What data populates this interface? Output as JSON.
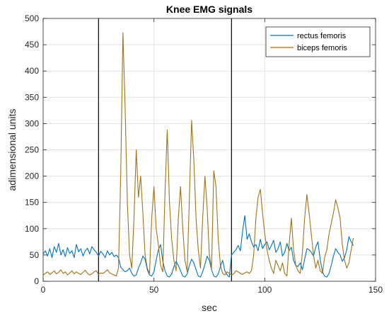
{
  "chart_data": {
    "type": "line",
    "title": "Knee EMG signals",
    "xlabel": "sec",
    "ylabel": "adimensional units",
    "xlim": [
      0,
      150
    ],
    "ylim": [
      0,
      500
    ],
    "xticks": [
      0,
      50,
      100,
      150
    ],
    "yticks": [
      0,
      50,
      100,
      150,
      200,
      250,
      300,
      350,
      400,
      450,
      500
    ],
    "grid": true,
    "legend_position": "top-right",
    "vertical_markers": [
      25,
      85
    ],
    "series": [
      {
        "name": "rectus femoris",
        "color": "#0072BD",
        "x": [
          0,
          1,
          2,
          3,
          4,
          5,
          6,
          7,
          8,
          9,
          10,
          11,
          12,
          13,
          14,
          15,
          16,
          17,
          18,
          19,
          20,
          21,
          22,
          23,
          24,
          25,
          26,
          27,
          28,
          29,
          30,
          31,
          32,
          33,
          34,
          35,
          36,
          37,
          38,
          39,
          40,
          41,
          42,
          43,
          44,
          45,
          46,
          47,
          48,
          49,
          50,
          51,
          52,
          53,
          54,
          55,
          56,
          57,
          58,
          59,
          60,
          61,
          62,
          63,
          64,
          65,
          66,
          67,
          68,
          69,
          70,
          71,
          72,
          73,
          74,
          75,
          76,
          77,
          78,
          79,
          80,
          81,
          82,
          83,
          84,
          85,
          86,
          87,
          88,
          89,
          90,
          91,
          92,
          93,
          94,
          95,
          96,
          97,
          98,
          99,
          100,
          101,
          102,
          103,
          104,
          105,
          106,
          107,
          108,
          109,
          110,
          111,
          112,
          113,
          114,
          115,
          116,
          117,
          118,
          119,
          120,
          121,
          122,
          123,
          124,
          125,
          126,
          127,
          128,
          129,
          130,
          131,
          132,
          133,
          134,
          135,
          136,
          137,
          138,
          139,
          140
        ],
        "y": [
          52,
          58,
          48,
          62,
          45,
          66,
          55,
          72,
          50,
          60,
          47,
          64,
          53,
          58,
          45,
          70,
          56,
          62,
          48,
          58,
          63,
          52,
          66,
          60,
          55,
          48,
          57,
          52,
          45,
          58,
          50,
          55,
          47,
          50,
          45,
          27,
          22,
          18,
          20,
          25,
          15,
          10,
          12,
          25,
          35,
          48,
          42,
          22,
          12,
          10,
          18,
          40,
          60,
          70,
          38,
          20,
          10,
          8,
          14,
          28,
          38,
          30,
          20,
          10,
          8,
          14,
          30,
          42,
          35,
          22,
          10,
          8,
          18,
          32,
          48,
          40,
          22,
          10,
          8,
          14,
          28,
          40,
          20,
          12,
          8,
          50,
          55,
          60,
          68,
          58,
          95,
          125,
          80,
          90,
          75,
          65,
          70,
          58,
          80,
          62,
          70,
          75,
          60,
          68,
          78,
          55,
          62,
          75,
          48,
          55,
          72,
          58,
          65,
          40,
          30,
          28,
          35,
          22,
          42,
          62,
          60,
          55,
          48,
          65,
          75,
          42,
          18,
          10,
          8,
          15,
          30,
          48,
          62,
          55,
          50,
          38,
          45,
          60,
          85,
          75,
          68
        ]
      },
      {
        "name": "biceps femoris",
        "color": "#A2711A",
        "x": [
          0,
          1,
          2,
          3,
          4,
          5,
          6,
          7,
          8,
          9,
          10,
          11,
          12,
          13,
          14,
          15,
          16,
          17,
          18,
          19,
          20,
          21,
          22,
          23,
          24,
          25,
          26,
          27,
          28,
          29,
          30,
          31,
          32,
          33,
          34,
          35,
          36,
          37,
          38,
          39,
          40,
          41,
          42,
          43,
          44,
          45,
          46,
          47,
          48,
          49,
          50,
          51,
          52,
          53,
          54,
          55,
          56,
          57,
          58,
          59,
          60,
          61,
          62,
          63,
          64,
          65,
          66,
          67,
          68,
          69,
          70,
          71,
          72,
          73,
          74,
          75,
          76,
          77,
          78,
          79,
          80,
          81,
          82,
          83,
          84,
          85,
          86,
          87,
          88,
          89,
          90,
          91,
          92,
          93,
          94,
          95,
          96,
          97,
          98,
          99,
          100,
          101,
          102,
          103,
          104,
          105,
          106,
          107,
          108,
          109,
          110,
          111,
          112,
          113,
          114,
          115,
          116,
          117,
          118,
          119,
          120,
          121,
          122,
          123,
          124,
          125,
          126,
          127,
          128,
          129,
          130,
          131,
          132,
          133,
          134,
          135,
          136,
          137,
          138,
          139,
          140
        ],
        "y": [
          12,
          15,
          18,
          13,
          16,
          20,
          14,
          17,
          22,
          15,
          18,
          12,
          16,
          20,
          14,
          18,
          15,
          13,
          17,
          21,
          15,
          12,
          14,
          18,
          20,
          13,
          16,
          15,
          18,
          22,
          16,
          14,
          12,
          10,
          25,
          200,
          473,
          330,
          150,
          50,
          25,
          120,
          250,
          160,
          200,
          130,
          50,
          25,
          15,
          120,
          180,
          100,
          70,
          30,
          18,
          170,
          288,
          150,
          80,
          40,
          20,
          120,
          180,
          100,
          40,
          18,
          160,
          306,
          230,
          120,
          60,
          25,
          120,
          200,
          140,
          50,
          25,
          210,
          180,
          80,
          30,
          15,
          12,
          18,
          15,
          12,
          14,
          20,
          18,
          15,
          13,
          16,
          18,
          15,
          20,
          50,
          120,
          160,
          175,
          130,
          90,
          60,
          40,
          25,
          15,
          40,
          30,
          20,
          35,
          15,
          10,
          70,
          120,
          60,
          30,
          20,
          15,
          55,
          120,
          165,
          130,
          90,
          50,
          25,
          40,
          20,
          15,
          45,
          60,
          90,
          110,
          130,
          155,
          140,
          120,
          70,
          40,
          25,
          35,
          60,
          82
        ]
      }
    ]
  }
}
